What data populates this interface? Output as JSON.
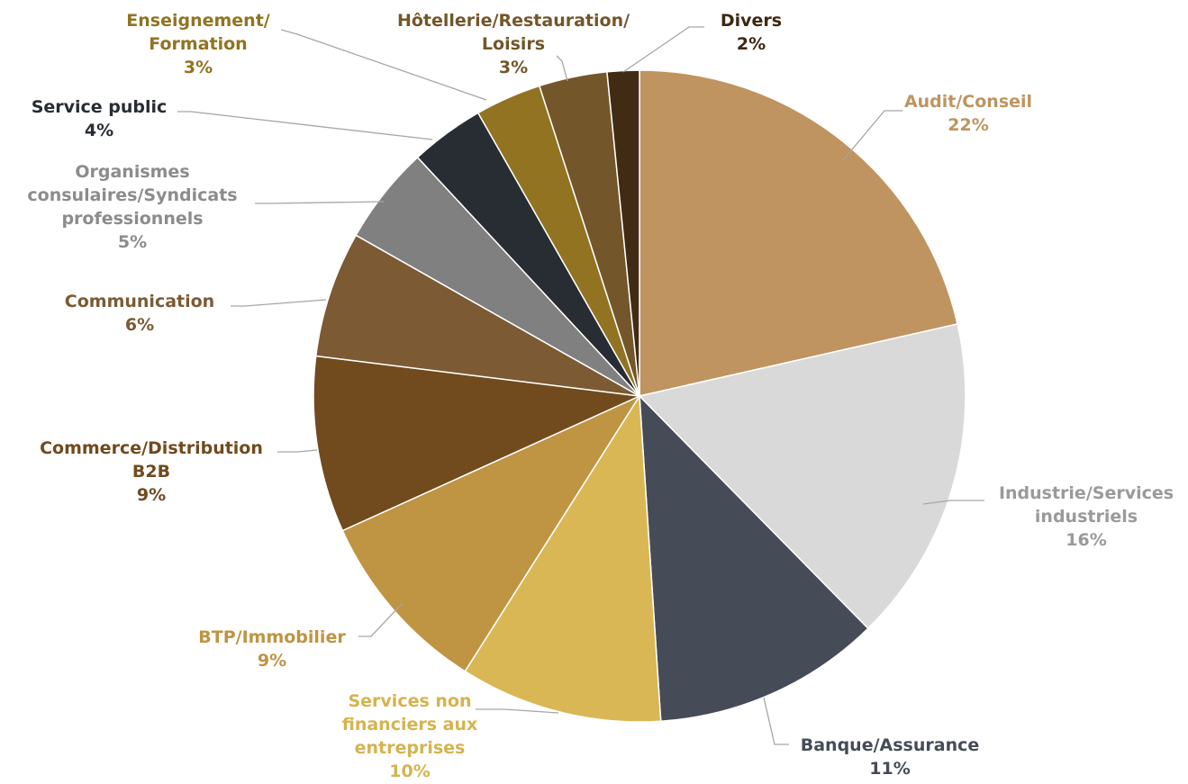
{
  "chart_data": {
    "type": "pie",
    "title": "",
    "legend": "none",
    "slices": [
      {
        "label_lines": [
          "Audit/Conseil"
        ],
        "value_label": "22%",
        "value": 21.6,
        "color": "#bf9460",
        "label_color": "#bf9460"
      },
      {
        "label_lines": [
          "Industrie/Services",
          "industriels"
        ],
        "value_label": "16%",
        "value": 16.3,
        "color": "#d9d9d9",
        "label_color": "#9a9a9a"
      },
      {
        "label_lines": [
          "Banque/Assurance"
        ],
        "value_label": "11%",
        "value": 11.4,
        "color": "#454c57",
        "label_color": "#454c57"
      },
      {
        "label_lines": [
          "Services non",
          "financiers aux",
          "entreprises"
        ],
        "value_label": "10%",
        "value": 10.1,
        "color": "#dab755",
        "label_color": "#d6b34f"
      },
      {
        "label_lines": [
          "BTP/Immobilier"
        ],
        "value_label": "9%",
        "value": 9.3,
        "color": "#bf9442",
        "label_color": "#bf9442"
      },
      {
        "label_lines": [
          "Commerce/Distribution",
          "B2B"
        ],
        "value_label": "9%",
        "value": 8.8,
        "color": "#714a1e",
        "label_color": "#714a1e"
      },
      {
        "label_lines": [
          "Communication"
        ],
        "value_label": "6%",
        "value": 6.3,
        "color": "#7c5a34",
        "label_color": "#7c5a34"
      },
      {
        "label_lines": [
          "Organismes",
          "consulaires/Syndicats",
          "professionnels"
        ],
        "value_label": "5%",
        "value": 4.9,
        "color": "#808080",
        "label_color": "#8c8c8c"
      },
      {
        "label_lines": [
          "Service public"
        ],
        "value_label": "4%",
        "value": 3.7,
        "color": "#282c33",
        "label_color": "#282c33"
      },
      {
        "label_lines": [
          "Enseignement/",
          "Formation"
        ],
        "value_label": "3%",
        "value": 3.3,
        "color": "#917321",
        "label_color": "#917321"
      },
      {
        "label_lines": [
          "Hôtellerie/Restauration/",
          "Loisirs"
        ],
        "value_label": "3%",
        "value": 3.4,
        "color": "#735629",
        "label_color": "#735629"
      },
      {
        "label_lines": [
          "Divers"
        ],
        "value_label": "2%",
        "value": 1.6,
        "color": "#422b15",
        "label_color": "#3d2812"
      }
    ]
  }
}
